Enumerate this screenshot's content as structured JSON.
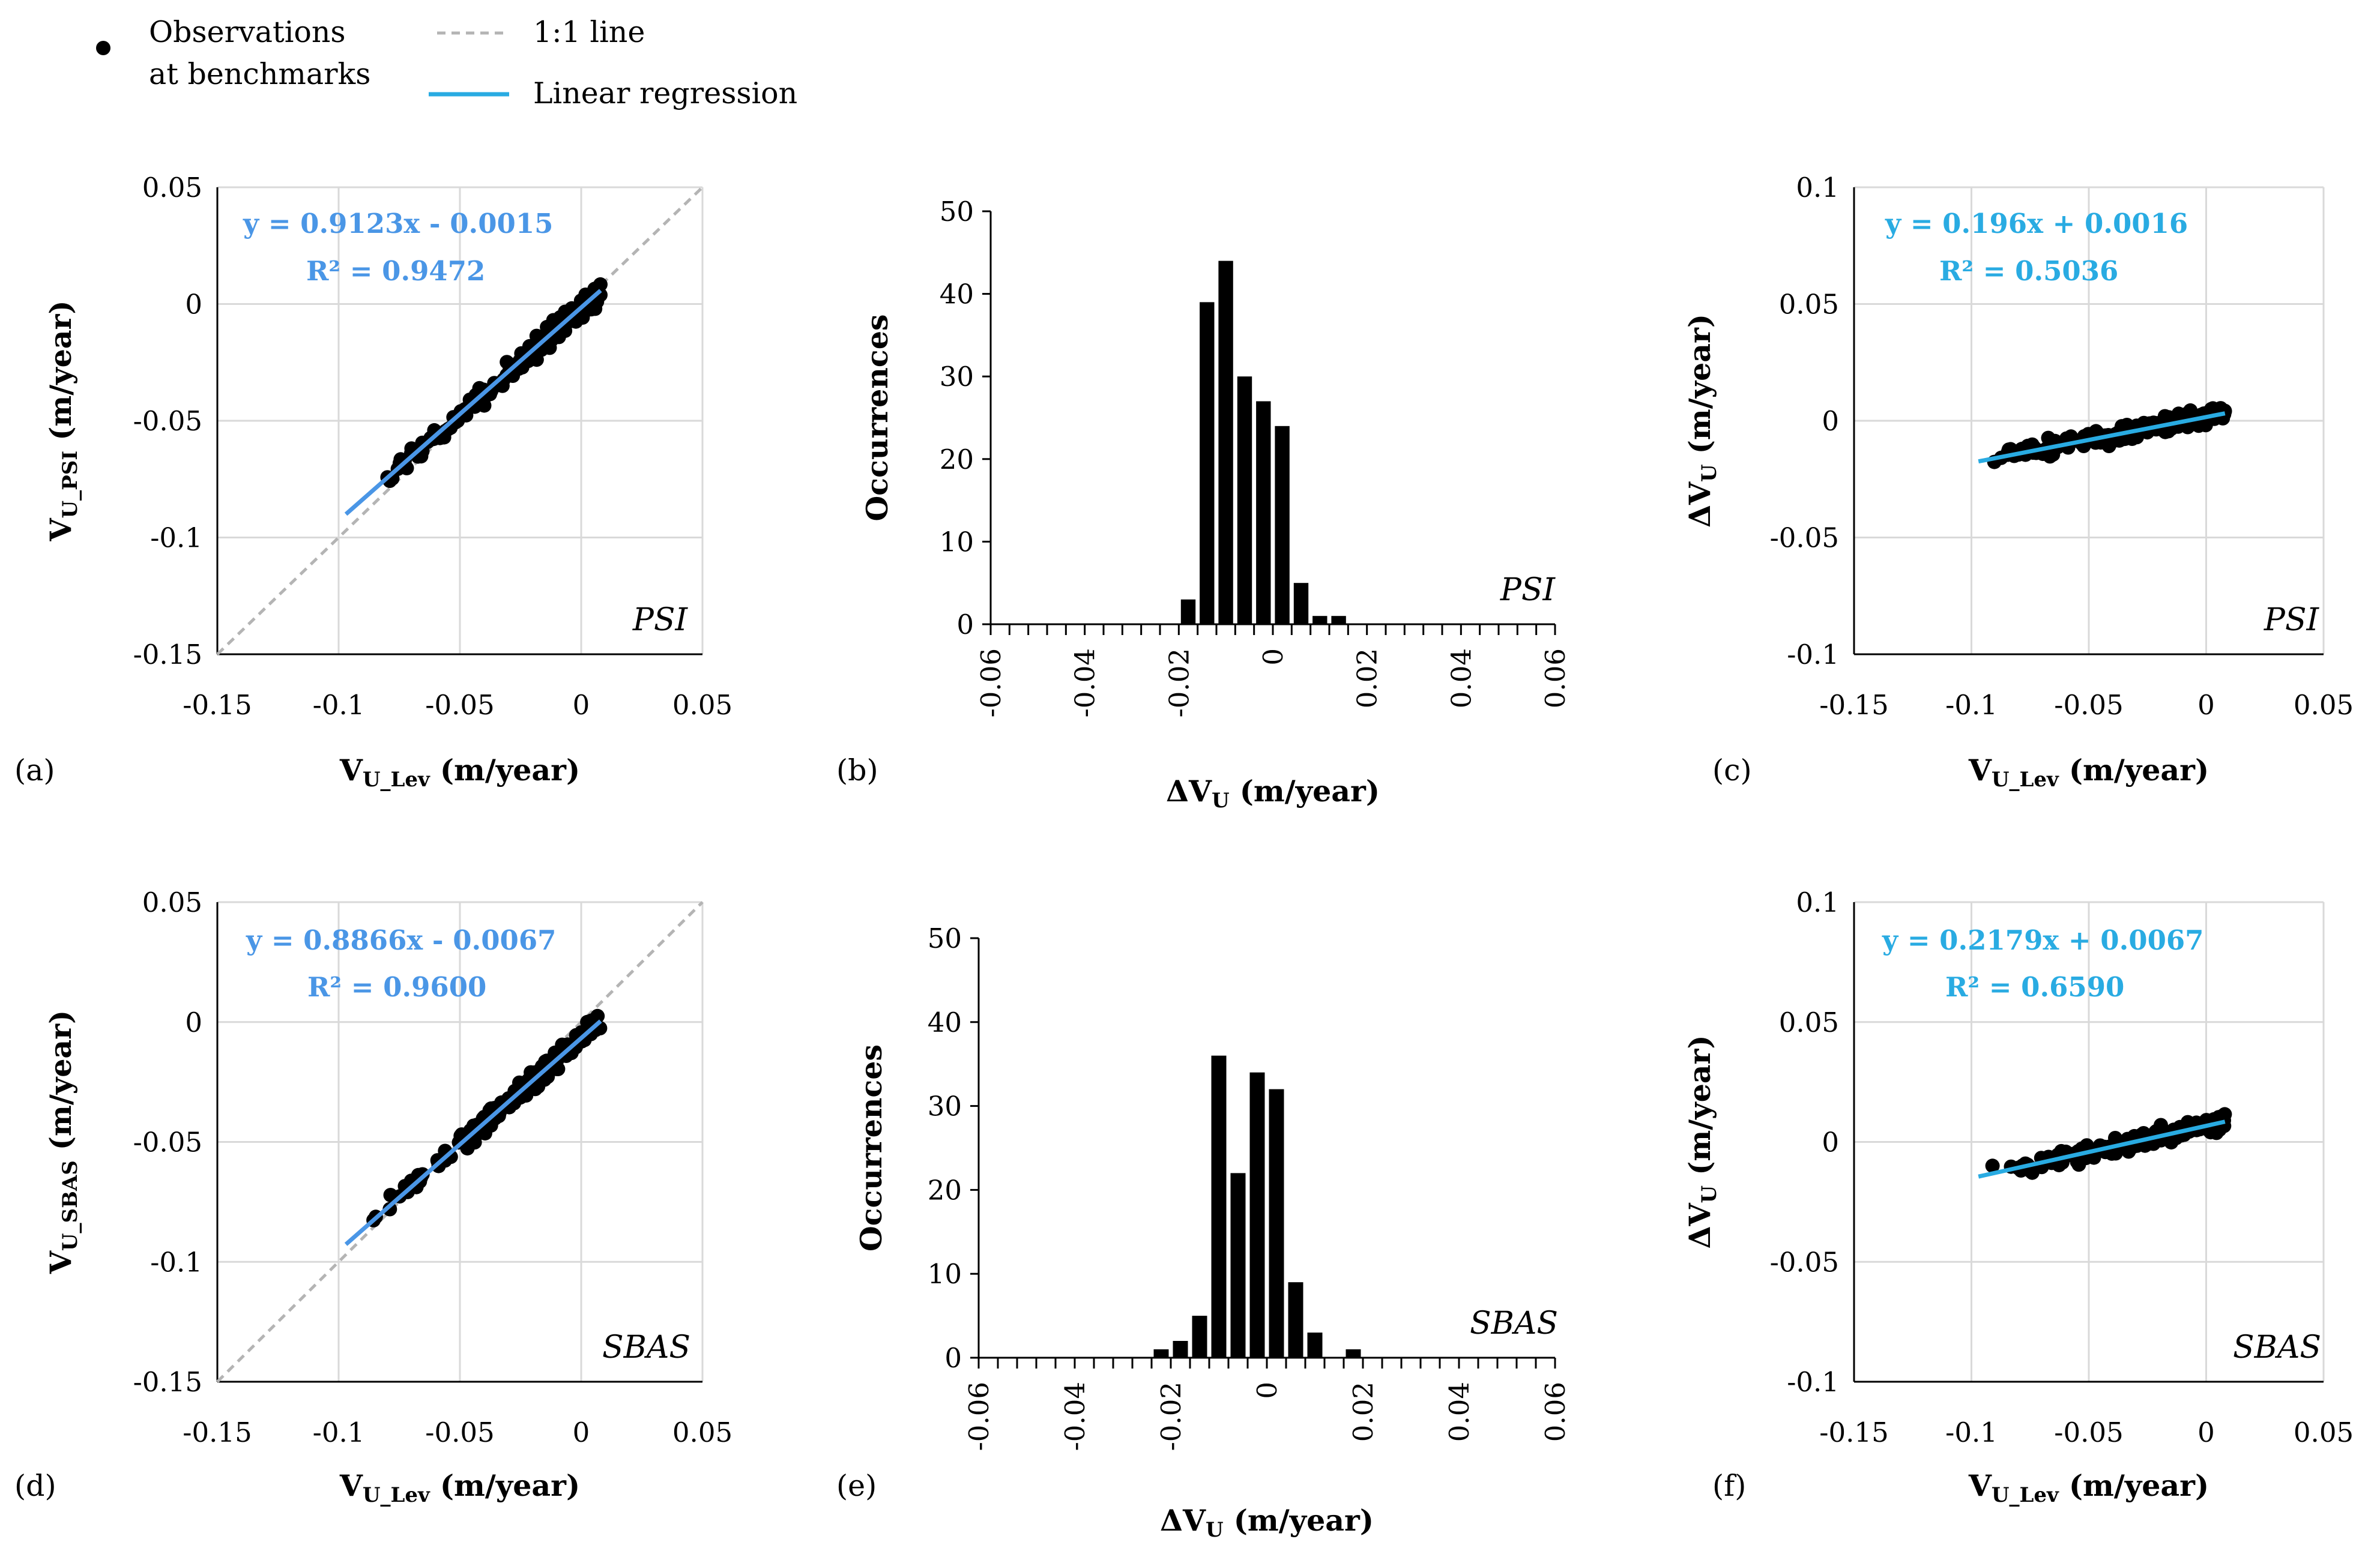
{
  "legend": {
    "observations_line1": "Observations",
    "observations_line2": "at benchmarks",
    "one_to_one": "1:1 line",
    "regression": "Linear regression"
  },
  "colors": {
    "regression_a": "#4a96e6",
    "regression_c": "#29abe2",
    "one_to_one": "#b4b4b4",
    "grid": "#d9d9d9",
    "points": "#000000"
  },
  "chart_data": [
    {
      "id": "a",
      "type": "scatter",
      "panel_label": "(a)",
      "method": "PSI",
      "xlabel": "V",
      "xlabel_sub": "U_Lev",
      "xlabel_unit": " (m/year)",
      "ylabel": "V",
      "ylabel_sub": "U_PSI",
      "ylabel_unit": " (m/year)",
      "xlim": [
        -0.15,
        0.05
      ],
      "ylim": [
        -0.15,
        0.05
      ],
      "xticks": [
        -0.15,
        -0.1,
        -0.05,
        0,
        0.05
      ],
      "xtick_labels": [
        "-0.15",
        "-0.1",
        "-0.05",
        "0",
        "0.05"
      ],
      "yticks": [
        -0.15,
        -0.1,
        -0.05,
        0,
        0.05
      ],
      "ytick_labels": [
        "-0.15",
        "-0.1",
        "-0.05",
        "0",
        "0.05"
      ],
      "equation": "y = 0.9123x - 0.0015",
      "r2": "R² = 0.9472",
      "fit": {
        "slope": 0.9123,
        "intercept": -0.0015,
        "x_range": [
          -0.097,
          0.008
        ]
      },
      "one_to_one": true
    },
    {
      "id": "b",
      "type": "bar",
      "panel_label": "(b)",
      "method": "PSI",
      "xlabel": "ΔV",
      "xlabel_sub": "U",
      "xlabel_unit": " (m/year)",
      "ylabel": "Occurrences",
      "xlim": [
        -0.06,
        0.06
      ],
      "ylim": [
        0,
        50
      ],
      "bin_width": 0.004,
      "xticks": [
        -0.06,
        -0.04,
        -0.02,
        0,
        0.02,
        0.04,
        0.06
      ],
      "xtick_labels": [
        "-0.06",
        "-0.04",
        "-0.02",
        "0",
        "0.02",
        "0.04",
        "0.06"
      ],
      "yticks": [
        0,
        10,
        20,
        30,
        40,
        50
      ],
      "ytick_labels": [
        "0",
        "10",
        "20",
        "30",
        "40",
        "50"
      ],
      "bin_centers": [
        -0.018,
        -0.014,
        -0.01,
        -0.006,
        -0.002,
        0.002,
        0.006,
        0.01,
        0.014,
        0.018,
        0.022
      ],
      "values": [
        3,
        39,
        44,
        30,
        27,
        24,
        5,
        1,
        1,
        0,
        0
      ]
    },
    {
      "id": "c",
      "type": "scatter",
      "panel_label": "(c)",
      "method": "PSI",
      "xlabel": "V",
      "xlabel_sub": "U_Lev",
      "xlabel_unit": " (m/year)",
      "ylabel": "ΔV",
      "ylabel_sub": "U",
      "ylabel_unit": " (m/year)",
      "xlim": [
        -0.15,
        0.05
      ],
      "ylim": [
        -0.1,
        0.1
      ],
      "xticks": [
        -0.15,
        -0.1,
        -0.05,
        0,
        0.05
      ],
      "xtick_labels": [
        "-0.15",
        "-0.1",
        "-0.05",
        "0",
        "0.05"
      ],
      "yticks": [
        -0.1,
        -0.05,
        0,
        0.05,
        0.1
      ],
      "ytick_labels": [
        "-0.1",
        "-0.05",
        "0",
        "0.05",
        "0.1"
      ],
      "equation": "y = 0.196x + 0.0016",
      "r2": "R² = 0.5036",
      "fit": {
        "slope": 0.196,
        "intercept": 0.0016,
        "x_range": [
          -0.097,
          0.008
        ]
      },
      "one_to_one": false
    },
    {
      "id": "d",
      "type": "scatter",
      "panel_label": "(d)",
      "method": "SBAS",
      "xlabel": "V",
      "xlabel_sub": "U_Lev",
      "xlabel_unit": " (m/year)",
      "ylabel": "V",
      "ylabel_sub": "U_SBAS",
      "ylabel_unit": " (m/year)",
      "xlim": [
        -0.15,
        0.05
      ],
      "ylim": [
        -0.15,
        0.05
      ],
      "xticks": [
        -0.15,
        -0.1,
        -0.05,
        0,
        0.05
      ],
      "xtick_labels": [
        "-0.15",
        "-0.1",
        "-0.05",
        "0",
        "0.05"
      ],
      "yticks": [
        -0.15,
        -0.1,
        -0.05,
        0,
        0.05
      ],
      "ytick_labels": [
        "-0.15",
        "-0.1",
        "-0.05",
        "0",
        "0.05"
      ],
      "equation": "y = 0.8866x - 0.0067",
      "r2": "R² = 0.9600",
      "fit": {
        "slope": 0.8866,
        "intercept": -0.0067,
        "x_range": [
          -0.097,
          0.008
        ]
      },
      "one_to_one": true
    },
    {
      "id": "e",
      "type": "bar",
      "panel_label": "(e)",
      "method": "SBAS",
      "xlabel": "ΔV",
      "xlabel_sub": "U",
      "xlabel_unit": " (m/year)",
      "ylabel": "Occurrences",
      "xlim": [
        -0.06,
        0.06
      ],
      "ylim": [
        0,
        50
      ],
      "bin_width": 0.004,
      "xticks": [
        -0.06,
        -0.04,
        -0.02,
        0,
        0.02,
        0.04,
        0.06
      ],
      "xtick_labels": [
        "-0.06",
        "-0.04",
        "-0.02",
        "0",
        "0.02",
        "0.04",
        "0.06"
      ],
      "yticks": [
        0,
        10,
        20,
        30,
        40,
        50
      ],
      "ytick_labels": [
        "0",
        "10",
        "20",
        "30",
        "40",
        "50"
      ],
      "bin_centers": [
        -0.022,
        -0.018,
        -0.014,
        -0.01,
        -0.006,
        -0.002,
        0.002,
        0.006,
        0.01,
        0.014,
        0.018,
        0.022,
        0.026
      ],
      "values": [
        1,
        2,
        5,
        36,
        22,
        34,
        32,
        9,
        3,
        0,
        1,
        0,
        0
      ]
    },
    {
      "id": "f",
      "type": "scatter",
      "panel_label": "(f)",
      "method": "SBAS",
      "xlabel": "V",
      "xlabel_sub": "U_Lev",
      "xlabel_unit": " (m/year)",
      "ylabel": "ΔV",
      "ylabel_sub": "U",
      "ylabel_unit": " (m/year)",
      "xlim": [
        -0.15,
        0.05
      ],
      "ylim": [
        -0.1,
        0.1
      ],
      "xticks": [
        -0.15,
        -0.1,
        -0.05,
        0,
        0.05
      ],
      "xtick_labels": [
        "-0.15",
        "-0.1",
        "-0.05",
        "0",
        "0.05"
      ],
      "yticks": [
        -0.1,
        -0.05,
        0,
        0.05,
        0.1
      ],
      "ytick_labels": [
        "-0.1",
        "-0.05",
        "0",
        "0.05",
        "0.1"
      ],
      "equation": "y = 0.2179x + 0.0067",
      "r2": "R² = 0.6590",
      "fit": {
        "slope": 0.2179,
        "intercept": 0.0067,
        "x_range": [
          -0.097,
          0.008
        ]
      },
      "one_to_one": false
    }
  ]
}
